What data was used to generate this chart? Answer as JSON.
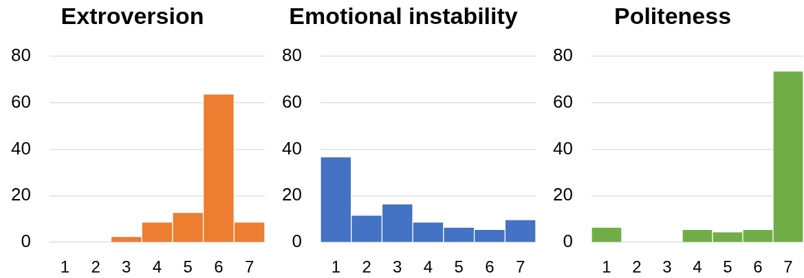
{
  "chart_data": [
    {
      "type": "bar",
      "title": "Extroversion",
      "categories": [
        "1",
        "2",
        "3",
        "4",
        "5",
        "6",
        "7"
      ],
      "values": [
        0,
        0,
        2.5,
        8.7,
        12.8,
        63.7,
        8.7
      ],
      "color": "#ed7d31",
      "ylim": [
        0,
        80
      ],
      "yticks": [
        0,
        20,
        40,
        60,
        80
      ],
      "grid": "y"
    },
    {
      "type": "bar",
      "title": "Emotional instability",
      "categories": [
        "1",
        "2",
        "3",
        "4",
        "5",
        "6",
        "7"
      ],
      "values": [
        36.7,
        11.6,
        16.5,
        8.7,
        6.5,
        5.5,
        9.7
      ],
      "color": "#4472c4",
      "ylim": [
        0,
        80
      ],
      "yticks": [
        0,
        20,
        40,
        60,
        80
      ],
      "grid": "y"
    },
    {
      "type": "bar",
      "title": "Politeness",
      "categories": [
        "1",
        "2",
        "3",
        "4",
        "5",
        "6",
        "7"
      ],
      "values": [
        6.5,
        0,
        0,
        5.5,
        4.5,
        5.5,
        73.6
      ],
      "color": "#70ad47",
      "ylim": [
        0,
        80
      ],
      "yticks": [
        0,
        20,
        40,
        60,
        80
      ],
      "grid": "y"
    }
  ]
}
